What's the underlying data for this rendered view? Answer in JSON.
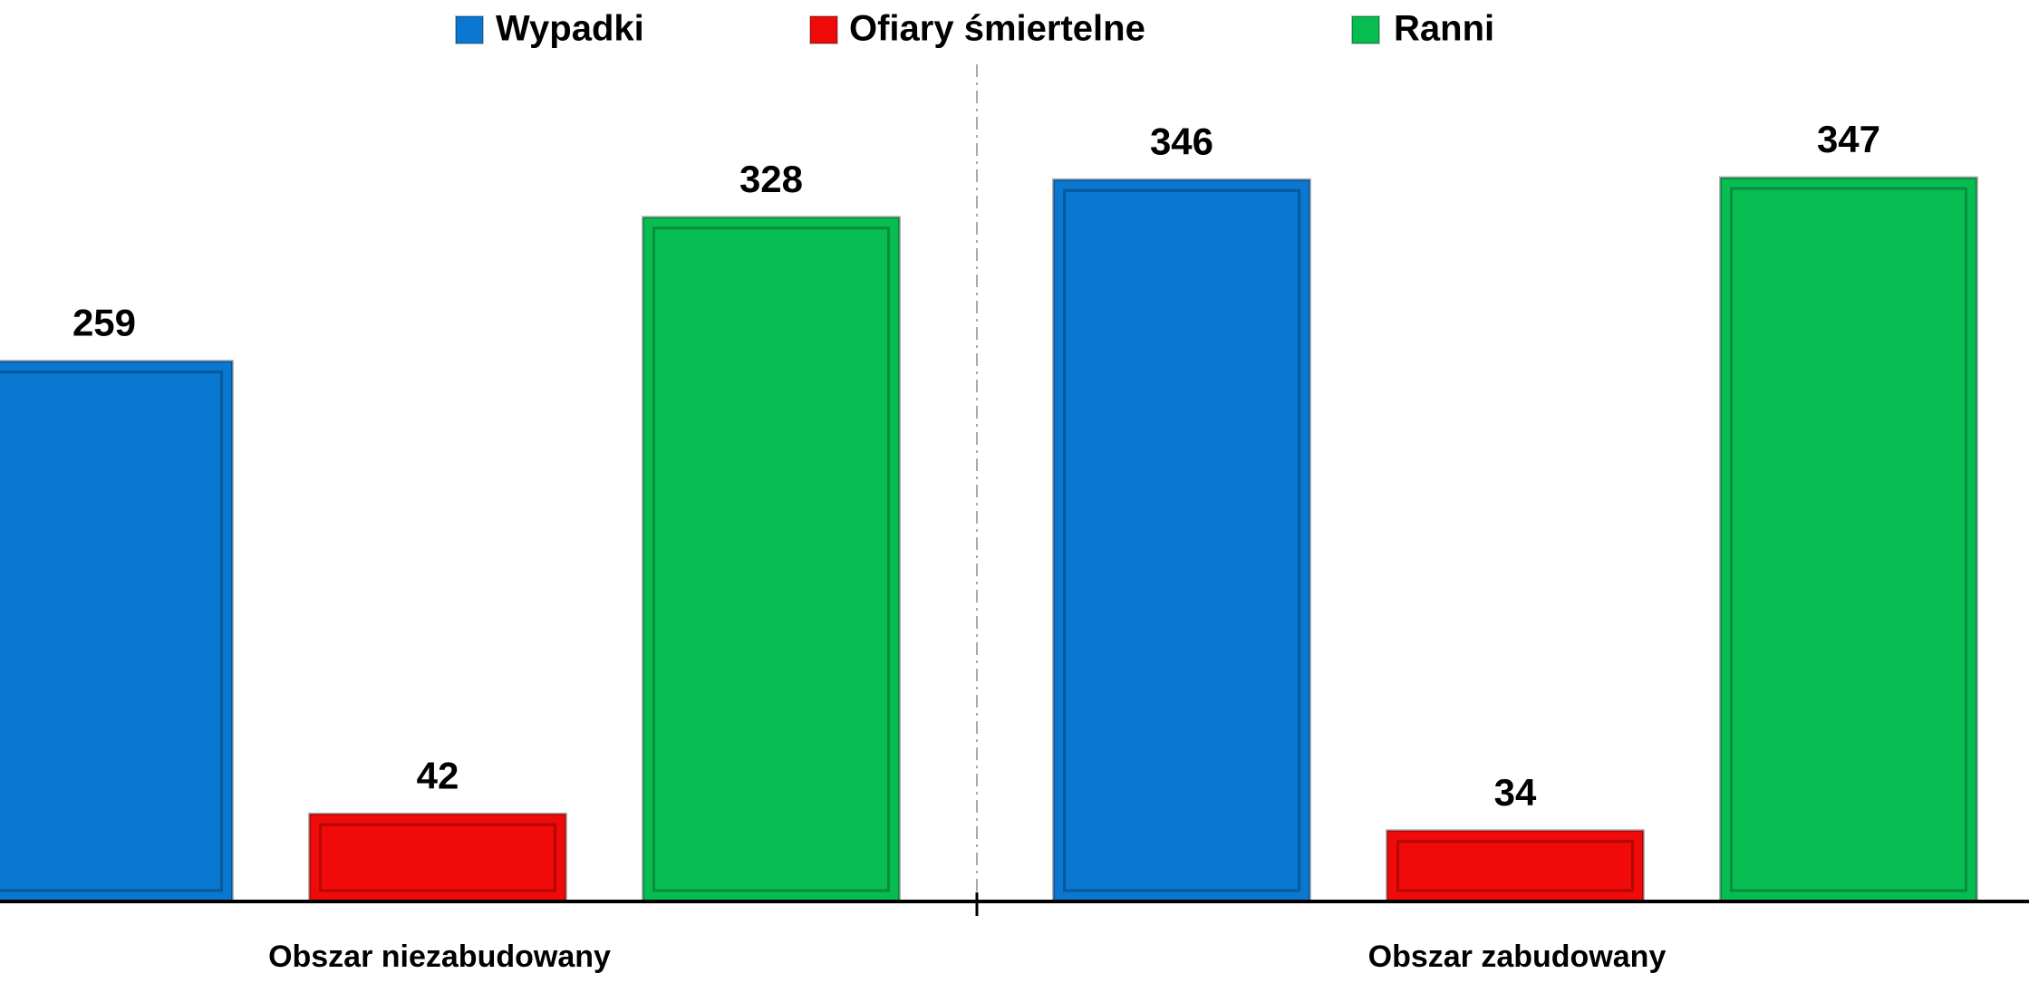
{
  "chart_data": {
    "type": "bar",
    "categories": [
      "Obszar niezabudowany",
      "Obszar zabudowany"
    ],
    "series": [
      {
        "name": "Wypadki",
        "color": "#0a77d0",
        "values": [
          259,
          346
        ]
      },
      {
        "name": "Ofiary śmiertelne",
        "color": "#f00a0a",
        "values": [
          42,
          34
        ]
      },
      {
        "name": "Ranni",
        "color": "#07bd52",
        "values": [
          328,
          347
        ]
      }
    ],
    "legend": "top"
  }
}
